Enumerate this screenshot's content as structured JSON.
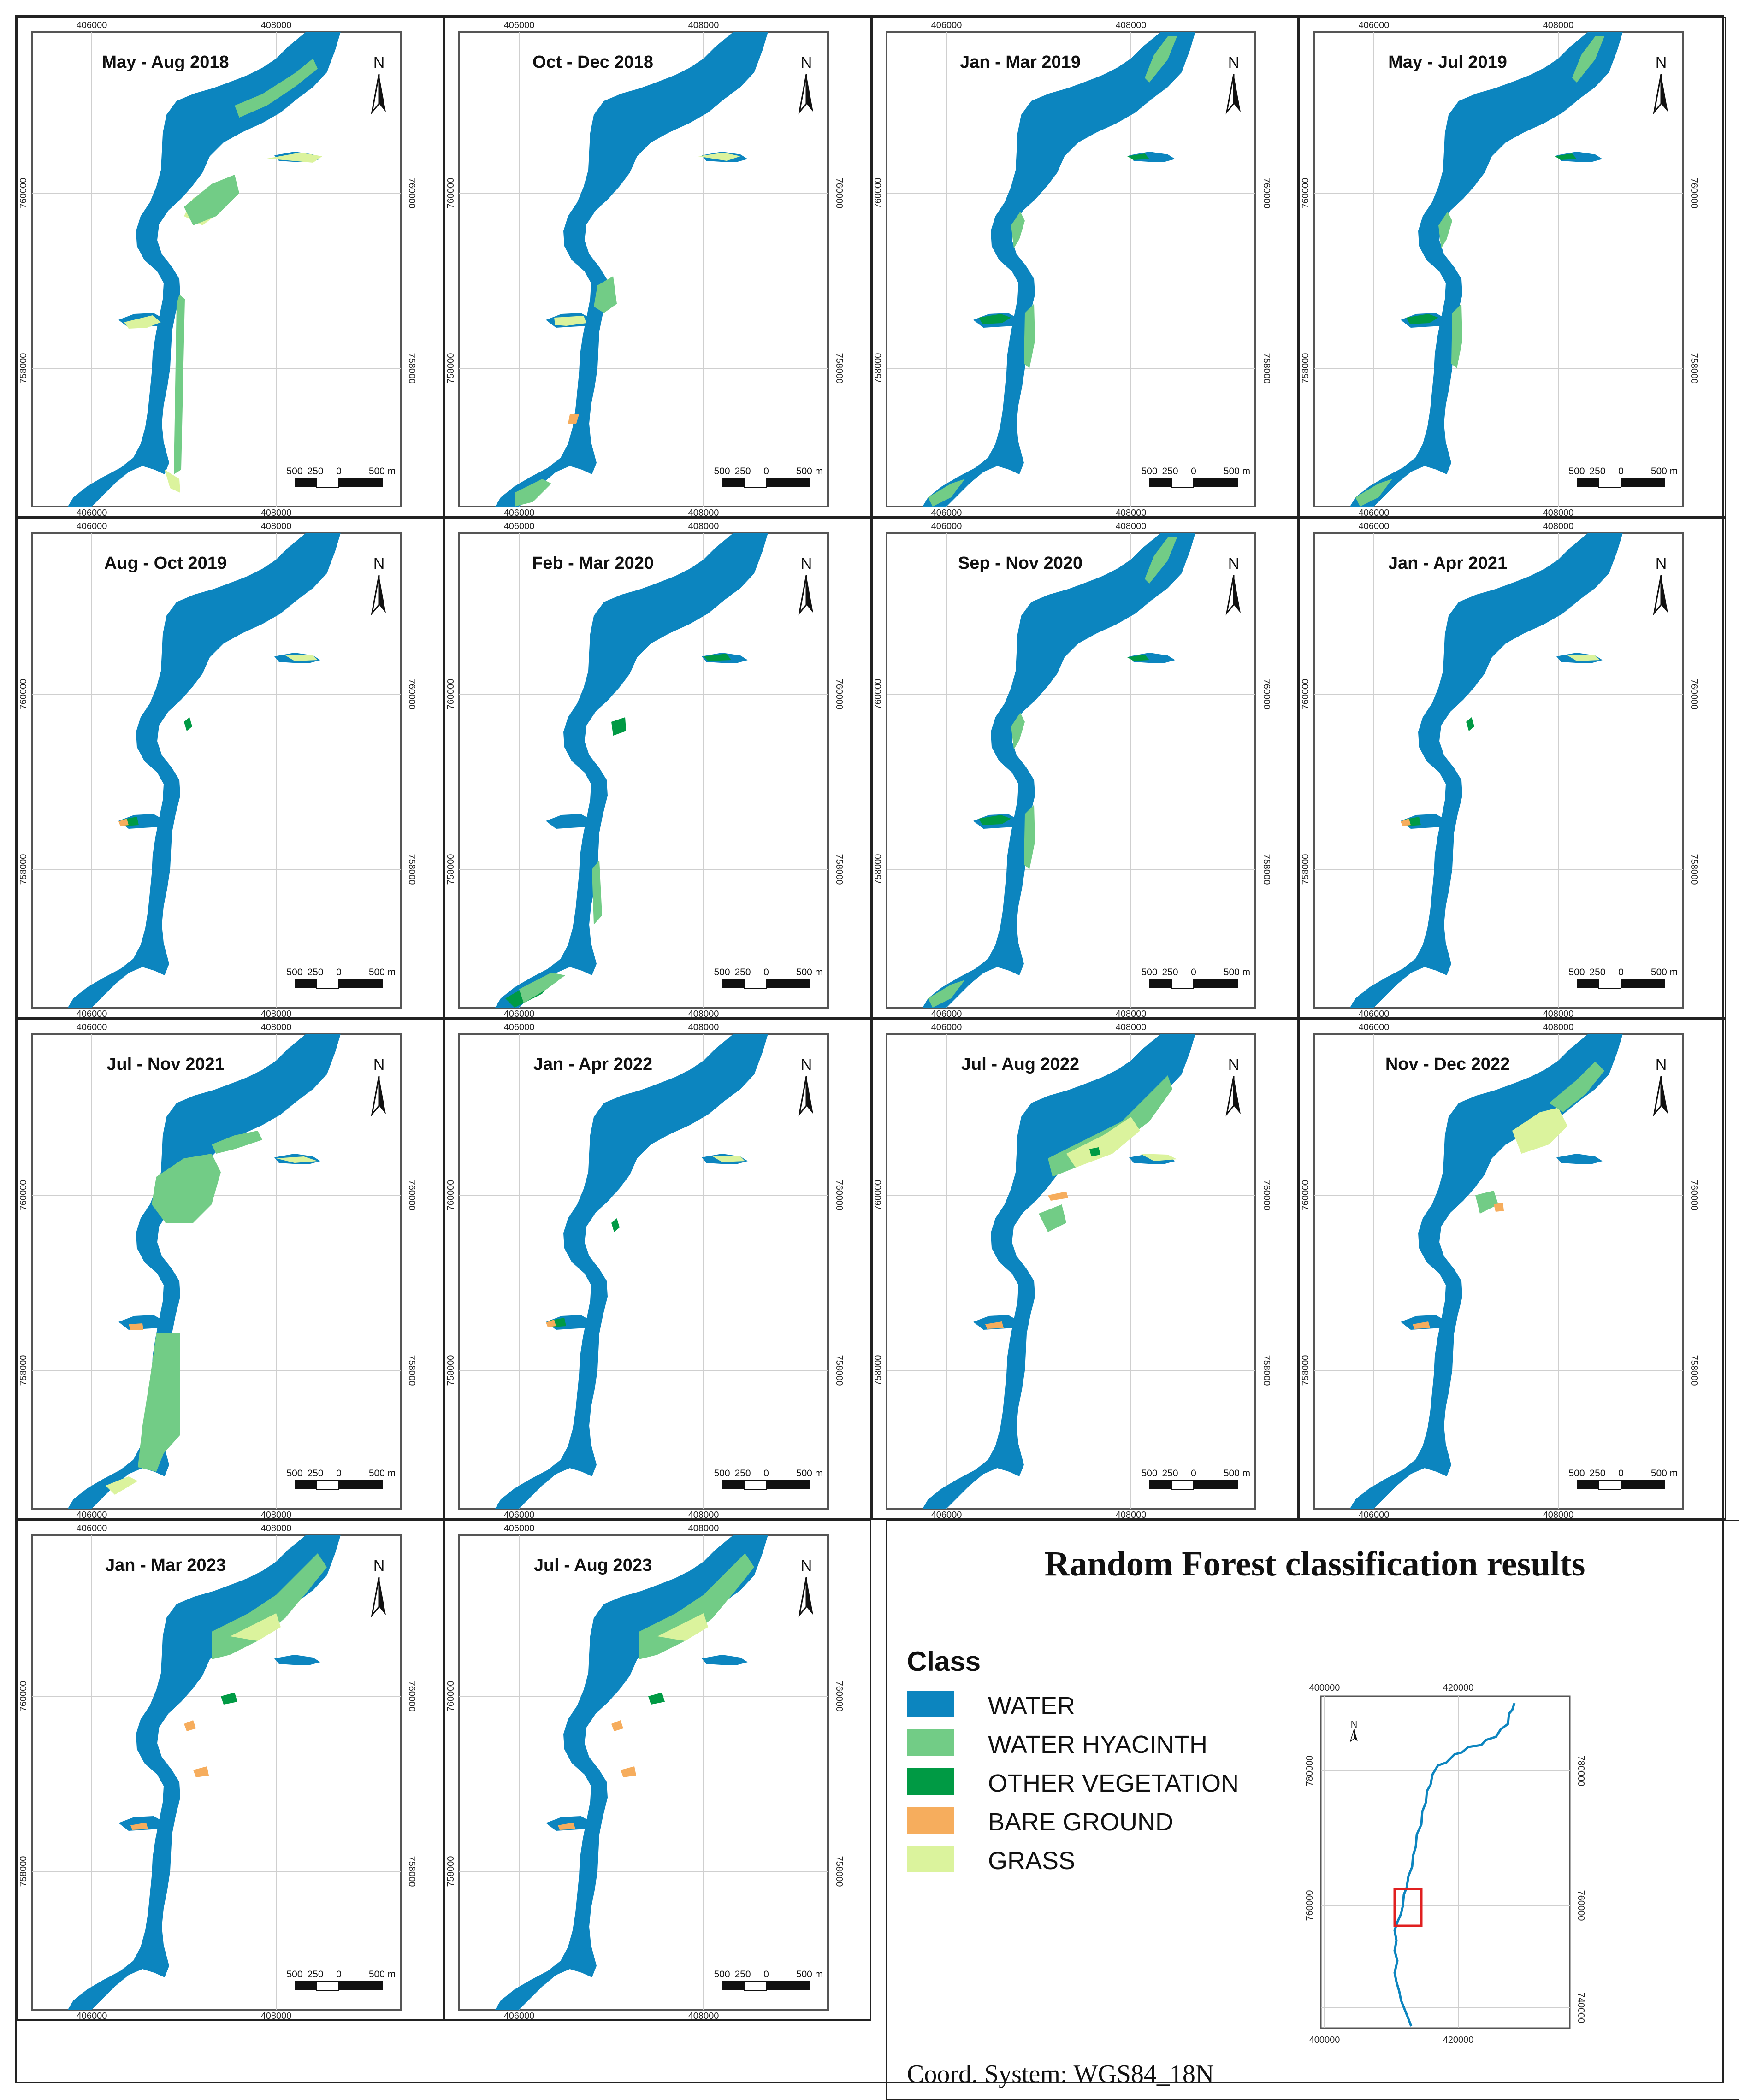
{
  "colors": {
    "water": "#0c85bf",
    "water_hyacinth": "#72cc86",
    "other_vegetation": "#009a44",
    "bare_ground": "#f6ad5d",
    "grass": "#dbf39d"
  },
  "map_coords": {
    "x_left": "406000",
    "x_right": "408000",
    "y_top": "760000",
    "y_bottom": "758000"
  },
  "north_label": "N",
  "scale_bar": {
    "left": "500",
    "mid": "250",
    "zero": "0",
    "right": "500 m"
  },
  "maps": [
    {
      "title": "May - Aug 2018",
      "variant": "early"
    },
    {
      "title": "Oct - Dec 2018",
      "variant": "mid"
    },
    {
      "title": "Jan - Mar 2019",
      "variant": "edge"
    },
    {
      "title": "May - Jul 2019",
      "variant": "edge"
    },
    {
      "title": "Aug - Oct 2019",
      "variant": "clean"
    },
    {
      "title": "Feb - Mar 2020",
      "variant": "veg"
    },
    {
      "title": "Sep - Nov 2020",
      "variant": "edge"
    },
    {
      "title": "Jan - Apr 2021",
      "variant": "clean"
    },
    {
      "title": "Jul - Nov 2021",
      "variant": "hyacinth"
    },
    {
      "title": "Jan - Apr 2022",
      "variant": "clean"
    },
    {
      "title": "Jul - Aug 2022",
      "variant": "mixed"
    },
    {
      "title": "Nov - Dec 2022",
      "variant": "grassy"
    },
    {
      "title": "Jan - Mar 2023",
      "variant": "bloom"
    },
    {
      "title": "Jul - Aug 2023",
      "variant": "bloom"
    }
  ],
  "panel": {
    "title": "Random Forest classification results",
    "class_heading": "Class",
    "legend": [
      {
        "label": "WATER",
        "color": "#0c85bf"
      },
      {
        "label": "WATER HYACINTH",
        "color": "#72cc86"
      },
      {
        "label": "OTHER VEGETATION",
        "color": "#009a44"
      },
      {
        "label": "BARE GROUND",
        "color": "#f6ad5d"
      },
      {
        "label": "GRASS",
        "color": "#dbf39d"
      }
    ],
    "coord_note": "Coord. System: WGS84_18N",
    "inset": {
      "x_left": "400000",
      "x_right": "420000",
      "y_top": "780000",
      "y_mid": "760000",
      "y_bottom": "740000",
      "north_label": "N"
    }
  }
}
